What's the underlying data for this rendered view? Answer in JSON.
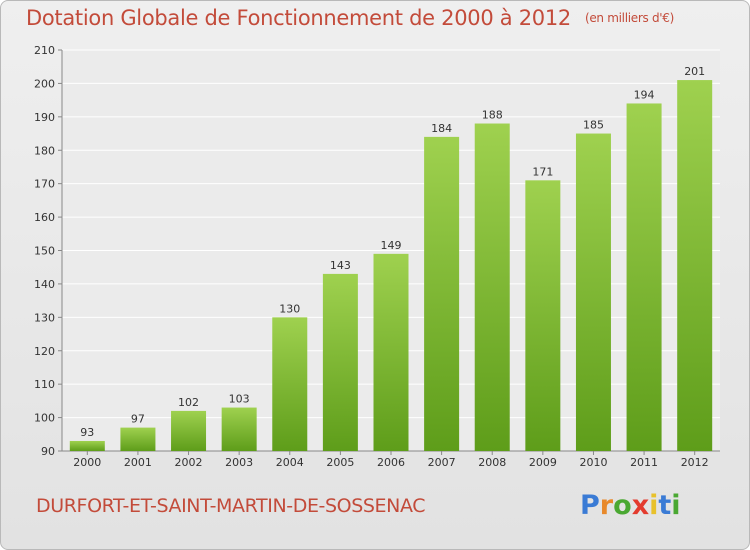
{
  "title": "Dotation Globale de Fonctionnement de 2000 à 2012",
  "unit_note": "(en milliers d'€)",
  "commune": "DURFORT-ET-SAINT-MARTIN-DE-SOSSENAC",
  "logo": {
    "text": "Proxiti",
    "letter_colors": [
      "#3a7bd5",
      "#e8892b",
      "#4aa832",
      "#e33b2e",
      "#e8c12b",
      "#3a7bd5",
      "#4aa832"
    ]
  },
  "colors": {
    "bar_light": "#9fd14f",
    "bar_dark": "#5e9d1a",
    "text_red": "#c34b3a"
  },
  "chart_data": {
    "type": "bar",
    "categories": [
      "2000",
      "2001",
      "2002",
      "2003",
      "2004",
      "2005",
      "2006",
      "2007",
      "2008",
      "2009",
      "2010",
      "2011",
      "2012"
    ],
    "values": [
      93,
      97,
      102,
      103,
      130,
      143,
      149,
      184,
      188,
      171,
      185,
      194,
      201
    ],
    "ylim": [
      90,
      210
    ],
    "yticks": [
      90,
      100,
      110,
      120,
      130,
      140,
      150,
      160,
      170,
      180,
      190,
      200,
      210
    ],
    "grid": true,
    "data_labels": true
  }
}
